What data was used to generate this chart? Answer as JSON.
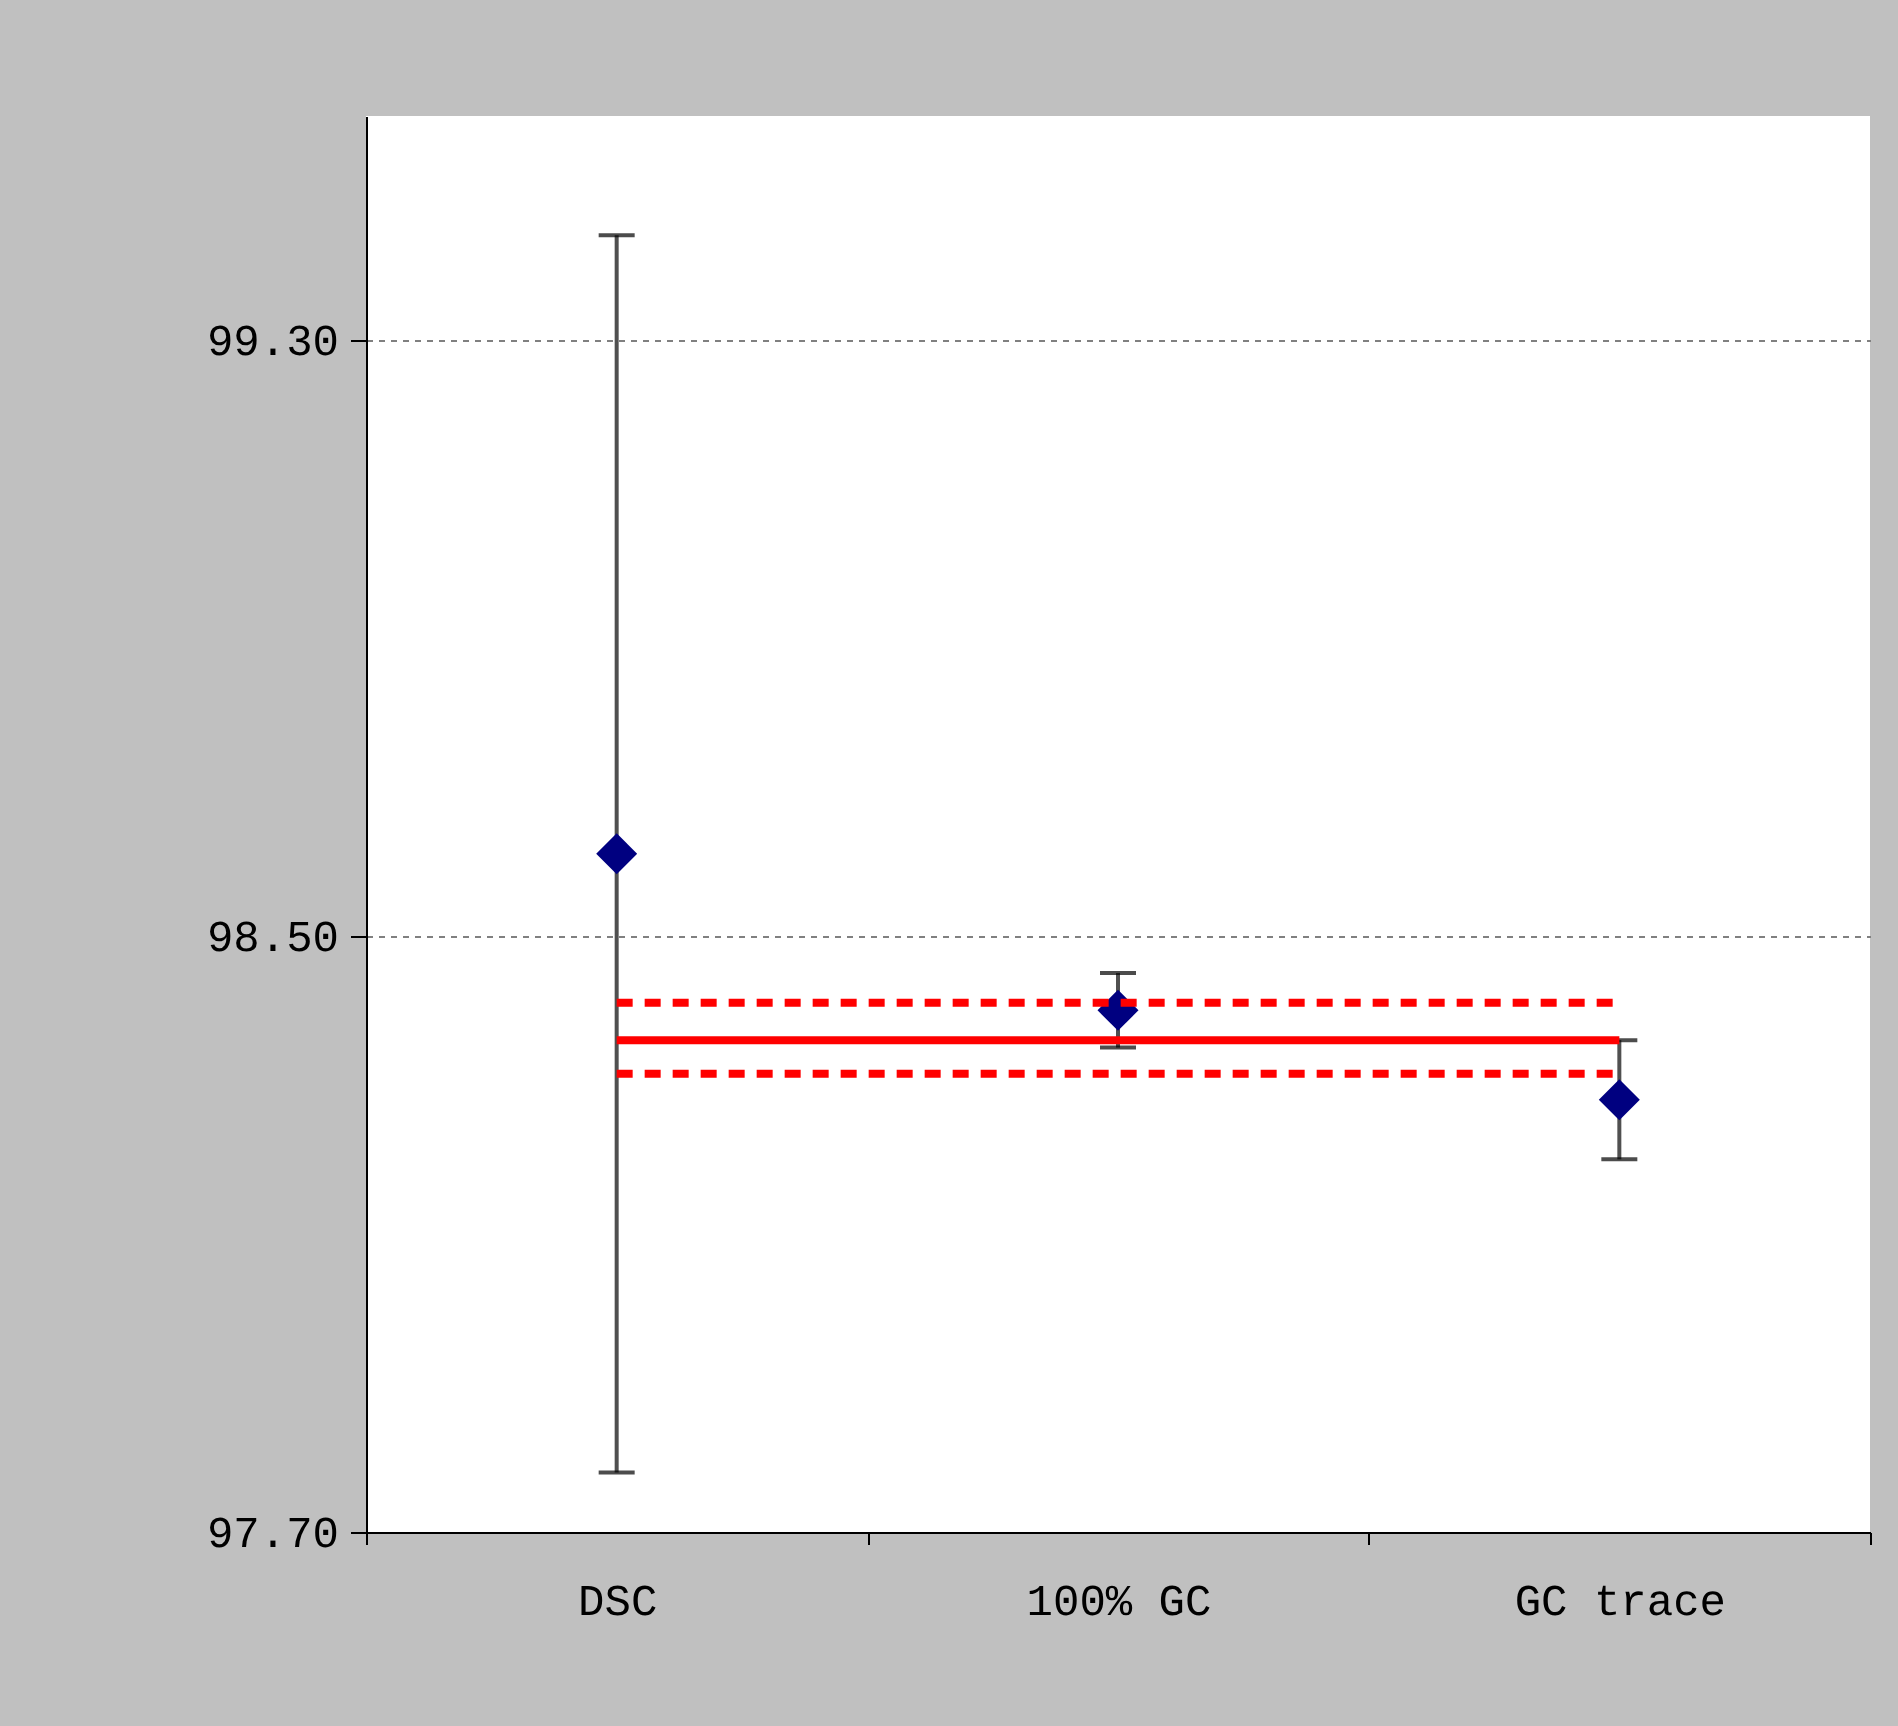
{
  "chart_data": {
    "type": "scatter",
    "categories": [
      "DSC",
      "100% GC",
      "GC trace"
    ],
    "series": [
      {
        "type": "scatter",
        "color": "#000080",
        "values": [
          98.61,
          98.4,
          98.28
        ],
        "errors": [
          [
            97.78,
            99.44
          ],
          [
            98.35,
            98.45
          ],
          [
            98.2,
            98.36
          ]
        ],
        "marker": "diamond"
      },
      {
        "type": "line",
        "color": "#ff0000",
        "values": [
          98.36,
          98.36,
          98.36
        ],
        "line_style": "solid",
        "marker": "none"
      },
      {
        "type": "line",
        "color": "#ff0000",
        "values": [
          98.41,
          98.41,
          98.41
        ],
        "line_style": "dashed",
        "marker": "none"
      },
      {
        "type": "line",
        "color": "#ff0000",
        "values": [
          98.315,
          98.315,
          98.315
        ],
        "line_style": "dashed",
        "marker": "none"
      }
    ],
    "ylim": [
      97.7,
      99.6
    ],
    "yticks": [
      {
        "value": 97.7,
        "label": "97.70"
      },
      {
        "value": 98.5,
        "label": "98.50"
      },
      {
        "value": 99.3,
        "label": "99.30"
      }
    ],
    "grid": "y"
  }
}
